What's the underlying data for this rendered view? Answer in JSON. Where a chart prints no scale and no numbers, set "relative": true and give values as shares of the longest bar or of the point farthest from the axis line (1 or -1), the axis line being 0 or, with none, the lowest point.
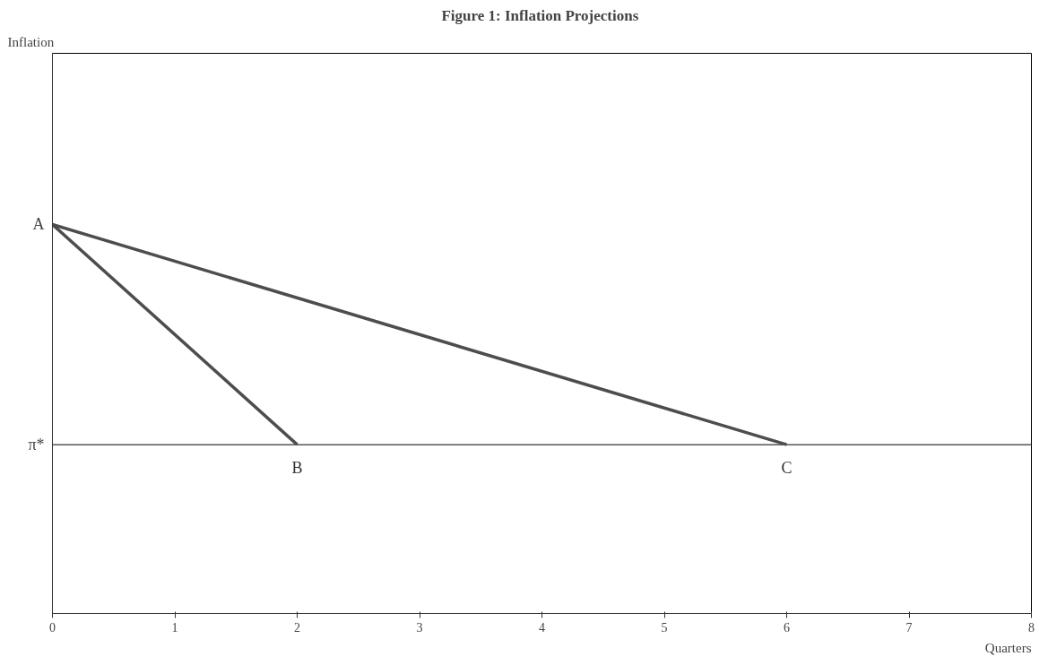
{
  "chart_data": {
    "type": "line",
    "title": "Figure 1:  Inflation Projections",
    "xlabel": "Quarters",
    "relative": true,
    "xlim": [
      0,
      8
    ],
    "xticks": [
      0,
      1,
      2,
      3,
      4,
      5,
      6,
      7,
      8
    ],
    "series": [
      {
        "color": "#4d4d4d",
        "x": [
          0,
          2
        ],
        "values": [
          1,
          0.434
        ]
      },
      {
        "color": "#4d4d4d",
        "x": [
          0,
          6
        ],
        "values": [
          1,
          0.434
        ]
      }
    ],
    "ref_lines": [
      {
        "axis": "y",
        "value": 0.434,
        "label": "π*",
        "color": "#555555"
      }
    ],
    "annotations": [
      {
        "text": "A",
        "x": 0,
        "y": 1
      },
      {
        "text": "B",
        "x": 2,
        "y": 0.434
      },
      {
        "text": "C",
        "x": 6,
        "y": 0.434
      },
      "Inflation"
    ],
    "grid": false,
    "marker": "none",
    "line_style": "solid"
  }
}
